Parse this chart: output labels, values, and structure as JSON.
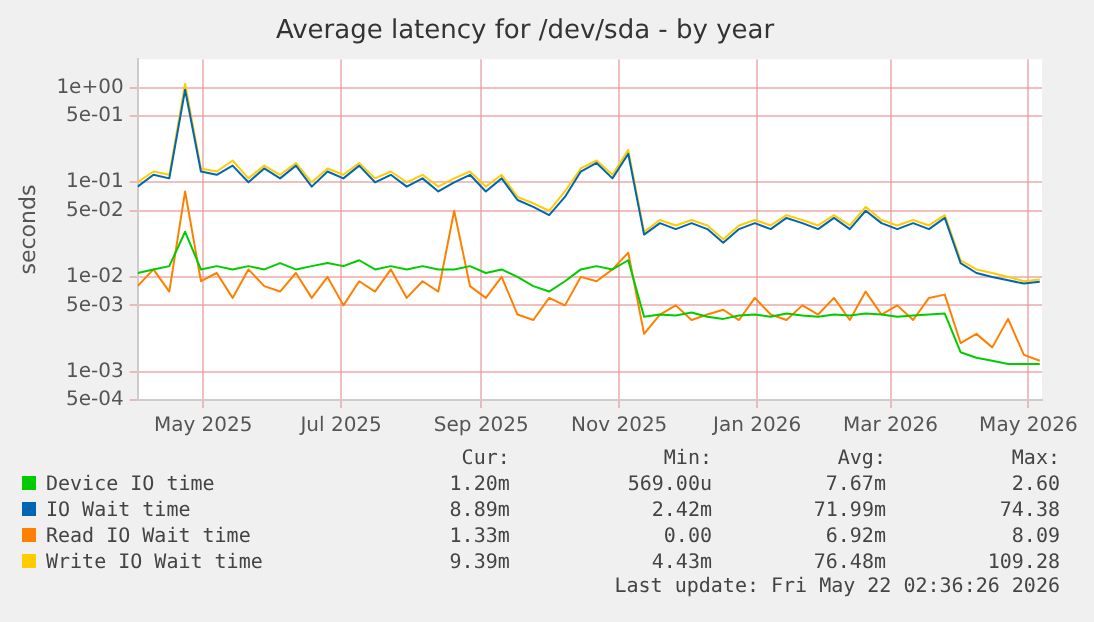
{
  "chart_data": {
    "type": "line",
    "title": "Average latency for /dev/sda - by year",
    "ylabel": "seconds",
    "x": [
      "2025-04-17",
      "2025-04-24",
      "2025-05-01",
      "2025-05-08",
      "2025-05-15",
      "2025-05-22",
      "2025-05-29",
      "2025-06-05",
      "2025-06-12",
      "2025-06-19",
      "2025-06-26",
      "2025-07-03",
      "2025-07-10",
      "2025-07-17",
      "2025-07-24",
      "2025-07-31",
      "2025-08-07",
      "2025-08-14",
      "2025-08-21",
      "2025-08-28",
      "2025-09-04",
      "2025-09-11",
      "2025-09-18",
      "2025-09-25",
      "2025-10-02",
      "2025-10-09",
      "2025-10-16",
      "2025-10-23",
      "2025-10-30",
      "2025-11-06",
      "2025-11-13",
      "2025-11-20",
      "2025-11-27",
      "2025-12-04",
      "2025-12-11",
      "2025-12-18",
      "2025-12-25",
      "2026-01-01",
      "2026-01-08",
      "2026-01-15",
      "2026-01-22",
      "2026-01-29",
      "2026-02-05",
      "2026-02-12",
      "2026-02-19",
      "2026-02-26",
      "2026-03-05",
      "2026-03-12",
      "2026-03-19",
      "2026-03-26",
      "2026-04-02",
      "2026-04-09",
      "2026-04-16",
      "2026-04-23",
      "2026-04-30",
      "2026-05-07",
      "2026-05-14",
      "2026-05-21"
    ],
    "series": [
      {
        "name": "Device IO time",
        "color": "#00cc00",
        "values": [
          0.011,
          0.012,
          0.013,
          0.03,
          0.012,
          0.013,
          0.012,
          0.013,
          0.012,
          0.014,
          0.012,
          0.013,
          0.014,
          0.013,
          0.015,
          0.012,
          0.013,
          0.012,
          0.013,
          0.012,
          0.012,
          0.013,
          0.011,
          0.012,
          0.01,
          0.008,
          0.007,
          0.009,
          0.012,
          0.013,
          0.012,
          0.015,
          0.0038,
          0.004,
          0.0039,
          0.0042,
          0.0038,
          0.0036,
          0.0039,
          0.004,
          0.0038,
          0.0041,
          0.0039,
          0.0038,
          0.004,
          0.0039,
          0.0041,
          0.004,
          0.0038,
          0.0039,
          0.004,
          0.0041,
          0.0016,
          0.0014,
          0.0013,
          0.0012,
          0.0012,
          0.0012
        ]
      },
      {
        "name": "IO Wait time",
        "color": "#0066b3",
        "values": [
          0.09,
          0.12,
          0.11,
          0.95,
          0.13,
          0.12,
          0.15,
          0.1,
          0.14,
          0.11,
          0.15,
          0.09,
          0.13,
          0.11,
          0.15,
          0.1,
          0.12,
          0.09,
          0.11,
          0.08,
          0.1,
          0.12,
          0.08,
          0.11,
          0.065,
          0.055,
          0.045,
          0.07,
          0.13,
          0.16,
          0.11,
          0.2,
          0.028,
          0.037,
          0.032,
          0.037,
          0.032,
          0.023,
          0.032,
          0.037,
          0.032,
          0.042,
          0.037,
          0.032,
          0.042,
          0.032,
          0.05,
          0.037,
          0.032,
          0.037,
          0.032,
          0.042,
          0.014,
          0.011,
          0.01,
          0.0092,
          0.0085,
          0.0089
        ]
      },
      {
        "name": "Read IO Wait time",
        "color": "#ff8000",
        "values": [
          0.008,
          0.012,
          0.007,
          0.08,
          0.009,
          0.011,
          0.006,
          0.012,
          0.008,
          0.007,
          0.011,
          0.006,
          0.01,
          0.005,
          0.009,
          0.007,
          0.012,
          0.006,
          0.009,
          0.007,
          0.05,
          0.008,
          0.006,
          0.01,
          0.004,
          0.0035,
          0.006,
          0.005,
          0.01,
          0.009,
          0.012,
          0.018,
          0.0025,
          0.004,
          0.005,
          0.0035,
          0.004,
          0.0045,
          0.0035,
          0.006,
          0.004,
          0.0035,
          0.005,
          0.004,
          0.006,
          0.0035,
          0.007,
          0.004,
          0.005,
          0.0035,
          0.006,
          0.0065,
          0.002,
          0.0025,
          0.0018,
          0.0036,
          0.0015,
          0.0013
        ]
      },
      {
        "name": "Write IO Wait time",
        "color": "#ffcc00",
        "values": [
          0.1,
          0.13,
          0.12,
          1.1,
          0.14,
          0.13,
          0.17,
          0.11,
          0.15,
          0.12,
          0.16,
          0.1,
          0.14,
          0.12,
          0.16,
          0.11,
          0.13,
          0.1,
          0.12,
          0.09,
          0.11,
          0.13,
          0.09,
          0.12,
          0.07,
          0.06,
          0.05,
          0.08,
          0.14,
          0.17,
          0.12,
          0.22,
          0.03,
          0.04,
          0.035,
          0.04,
          0.035,
          0.025,
          0.035,
          0.04,
          0.035,
          0.045,
          0.04,
          0.035,
          0.045,
          0.035,
          0.055,
          0.04,
          0.035,
          0.04,
          0.035,
          0.045,
          0.015,
          0.012,
          0.011,
          0.01,
          0.009,
          0.0094
        ]
      }
    ],
    "xlim": [
      "2025-04-17",
      "2026-05-22"
    ],
    "xticks": [
      {
        "value": "2025-05-16",
        "label": "May 2025"
      },
      {
        "value": "2025-07-16",
        "label": "Jul 2025"
      },
      {
        "value": "2025-09-16",
        "label": "Sep 2025"
      },
      {
        "value": "2025-11-16",
        "label": "Nov 2025"
      },
      {
        "value": "2026-01-16",
        "label": "Jan 2026"
      },
      {
        "value": "2026-03-16",
        "label": "Mar 2026"
      },
      {
        "value": "2026-05-16",
        "label": "May 2026"
      }
    ],
    "ylim": [
      0.0005,
      2
    ],
    "yticks": [
      {
        "value": 0.0005,
        "label": "5e-04"
      },
      {
        "value": 0.001,
        "label": "1e-03"
      },
      {
        "value": 0.005,
        "label": "5e-03"
      },
      {
        "value": 0.01,
        "label": "1e-02"
      },
      {
        "value": 0.05,
        "label": "5e-02"
      },
      {
        "value": 0.1,
        "label": "1e-01"
      },
      {
        "value": 0.5,
        "label": "5e-01"
      },
      {
        "value": 1,
        "label": "1e+00"
      }
    ],
    "log": "y",
    "grid": true,
    "legend": "bottom",
    "annotations": [
      "Cur:",
      "Min:",
      "Avg:",
      "Max:",
      "1.20m",
      "569.00u",
      "7.67m",
      "2.60",
      "8.89m",
      "2.42m",
      "71.99m",
      "74.38",
      "1.33m",
      "0.00",
      "6.92m",
      "8.09",
      "9.39m",
      "4.43m",
      "76.48m",
      "109.28",
      "Last update: Fri May 22 02:36:26 2026"
    ]
  }
}
